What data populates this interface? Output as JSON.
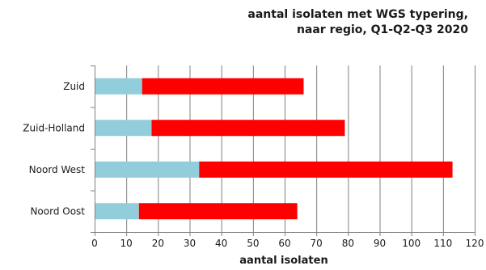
{
  "chart_data": {
    "type": "bar",
    "orientation": "horizontal",
    "stacked": true,
    "title_lines": [
      "aantal isolaten met WGS typering,",
      "naar regio, Q1-Q2-Q3 2020"
    ],
    "xlabel": "aantal isolaten",
    "ylabel": "",
    "categories": [
      "Zuid",
      "Zuid-Holland",
      "Noord West",
      "Noord Oost"
    ],
    "series": [
      {
        "values": [
          15,
          18,
          33,
          14
        ],
        "color": "#92CDDC"
      },
      {
        "values": [
          51,
          61,
          80,
          50
        ],
        "color": "#FF0000"
      }
    ],
    "xlim": [
      0,
      120
    ],
    "xticks": [
      0,
      10,
      20,
      30,
      40,
      50,
      60,
      70,
      80,
      90,
      100,
      110,
      120
    ],
    "grid": "vertical",
    "legend": "none"
  }
}
